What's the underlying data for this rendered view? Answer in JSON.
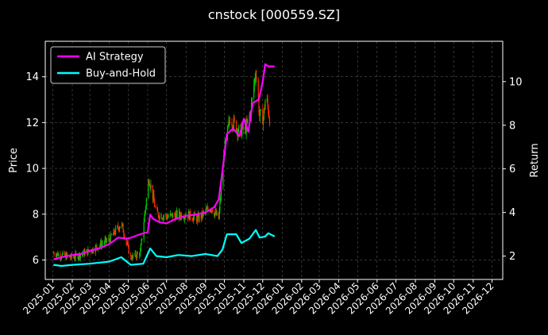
{
  "chart_data": {
    "type": "line",
    "title": "cnstock [000559.SZ]",
    "ylabel_left": "Price",
    "ylabel_right": "Return",
    "x_ticks": [
      "2025-01",
      "2025-02",
      "2025-03",
      "2025-04",
      "2025-05",
      "2025-06",
      "2025-07",
      "2025-08",
      "2025-09",
      "2025-10",
      "2025-11",
      "2025-12",
      "2026-01",
      "2026-02",
      "2026-03",
      "2026-04",
      "2026-05",
      "2026-06",
      "2026-07",
      "2026-08",
      "2026-09",
      "2026-10",
      "2026-11",
      "2026-12"
    ],
    "y_left_ticks": [
      6,
      8,
      10,
      12,
      14
    ],
    "y_left_range": [
      5.15,
      15.55
    ],
    "y_right_ticks": [
      2,
      4,
      6,
      8,
      10
    ],
    "y_right_range": [
      0.93,
      11.85
    ],
    "x_range": [
      "2024-12-20",
      "2026-12-18"
    ],
    "legend_position": "top-left",
    "grid": true,
    "colors": {
      "ai_strategy": "#ff00ff",
      "buy_and_hold": "#00ffff",
      "candle_up": "#00c800",
      "candle_down": "#ff2a00",
      "grid": "#555555"
    },
    "series": [
      {
        "name": "AI Strategy",
        "axis": "right",
        "points": [
          [
            "2025-01-02",
            1.85
          ],
          [
            "2025-01-15",
            1.95
          ],
          [
            "2025-02-01",
            2.05
          ],
          [
            "2025-02-15",
            2.1
          ],
          [
            "2025-03-01",
            2.25
          ],
          [
            "2025-03-15",
            2.35
          ],
          [
            "2025-04-01",
            2.55
          ],
          [
            "2025-04-15",
            2.85
          ],
          [
            "2025-05-01",
            2.8
          ],
          [
            "2025-05-20",
            3.0
          ],
          [
            "2025-06-01",
            3.1
          ],
          [
            "2025-06-05",
            3.9
          ],
          [
            "2025-06-10",
            3.7
          ],
          [
            "2025-06-20",
            3.55
          ],
          [
            "2025-07-01",
            3.5
          ],
          [
            "2025-07-15",
            3.7
          ],
          [
            "2025-08-01",
            3.85
          ],
          [
            "2025-08-15",
            3.9
          ],
          [
            "2025-09-01",
            4.0
          ],
          [
            "2025-09-15",
            4.25
          ],
          [
            "2025-09-22",
            4.6
          ],
          [
            "2025-09-28",
            5.9
          ],
          [
            "2025-10-05",
            7.6
          ],
          [
            "2025-10-15",
            7.85
          ],
          [
            "2025-10-25",
            7.5
          ],
          [
            "2025-11-01",
            8.3
          ],
          [
            "2025-11-08",
            7.7
          ],
          [
            "2025-11-15",
            9.0
          ],
          [
            "2025-11-25",
            9.2
          ],
          [
            "2025-12-01",
            10.0
          ],
          [
            "2025-12-05",
            10.8
          ],
          [
            "2025-12-10",
            10.7
          ],
          [
            "2025-12-20",
            10.7
          ]
        ]
      },
      {
        "name": "Buy-and-Hold",
        "axis": "right",
        "points": [
          [
            "2025-01-02",
            1.6
          ],
          [
            "2025-01-15",
            1.55
          ],
          [
            "2025-02-01",
            1.6
          ],
          [
            "2025-03-01",
            1.65
          ],
          [
            "2025-04-01",
            1.75
          ],
          [
            "2025-04-20",
            1.95
          ],
          [
            "2025-05-05",
            1.6
          ],
          [
            "2025-05-25",
            1.65
          ],
          [
            "2025-06-05",
            2.35
          ],
          [
            "2025-06-15",
            2.0
          ],
          [
            "2025-07-01",
            1.95
          ],
          [
            "2025-07-20",
            2.05
          ],
          [
            "2025-08-10",
            2.0
          ],
          [
            "2025-09-01",
            2.1
          ],
          [
            "2025-09-20",
            2.0
          ],
          [
            "2025-09-28",
            2.3
          ],
          [
            "2025-10-05",
            3.0
          ],
          [
            "2025-10-20",
            3.0
          ],
          [
            "2025-10-28",
            2.6
          ],
          [
            "2025-11-10",
            2.8
          ],
          [
            "2025-11-20",
            3.2
          ],
          [
            "2025-11-26",
            2.85
          ],
          [
            "2025-12-05",
            2.9
          ],
          [
            "2025-12-10",
            3.05
          ],
          [
            "2025-12-20",
            2.9
          ]
        ]
      }
    ],
    "price_anchors": [
      [
        "2025-01-02",
        6.3
      ],
      [
        "2025-02-01",
        6.1
      ],
      [
        "2025-03-01",
        6.4
      ],
      [
        "2025-04-01",
        6.9
      ],
      [
        "2025-04-20",
        7.6
      ],
      [
        "2025-05-05",
        6.1
      ],
      [
        "2025-05-20",
        6.3
      ],
      [
        "2025-06-03",
        9.6
      ],
      [
        "2025-06-15",
        8.0
      ],
      [
        "2025-07-01",
        7.9
      ],
      [
        "2025-08-01",
        8.0
      ],
      [
        "2025-08-20",
        7.8
      ],
      [
        "2025-09-10",
        8.3
      ],
      [
        "2025-09-22",
        7.8
      ],
      [
        "2025-10-01",
        10.8
      ],
      [
        "2025-10-10",
        12.2
      ],
      [
        "2025-10-25",
        11.6
      ],
      [
        "2025-11-05",
        11.8
      ],
      [
        "2025-11-12",
        12.5
      ],
      [
        "2025-11-20",
        14.3
      ],
      [
        "2025-11-26",
        12.3
      ],
      [
        "2025-12-02",
        12.2
      ],
      [
        "2025-12-06",
        13.2
      ],
      [
        "2025-12-12",
        12.2
      ]
    ]
  }
}
